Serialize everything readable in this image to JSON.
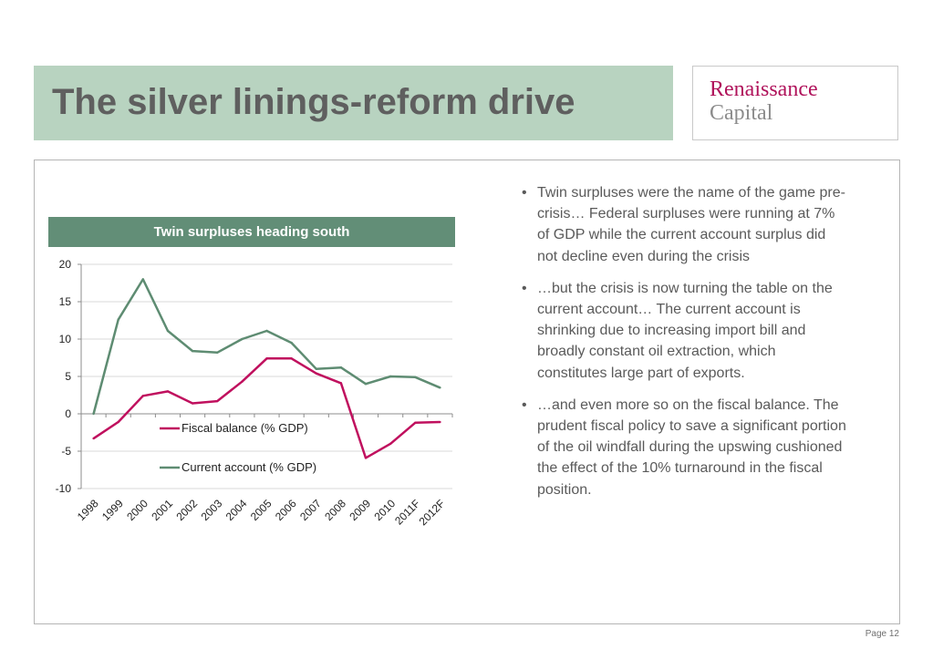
{
  "slide": {
    "title": "The silver linings-reform drive",
    "logo": {
      "line1": "Renaissance",
      "line2": "Capital"
    },
    "page": "Page 12"
  },
  "chart_header": "Twin surpluses heading south",
  "bullets": [
    "Twin surpluses were the name of the game pre-crisis… Federal surpluses were running at 7% of GDP while the current account surplus did not decline even during the crisis",
    "…but the crisis is now turning the table on the current account… The current account is shrinking due to increasing import bill and broadly constant oil extraction, which constitutes large part of exports.",
    "…and even more so on the fiscal balance.  The prudent fiscal policy to save a significant portion of the oil windfall during the upswing cushioned the effect of the 10% turnaround in the fiscal position."
  ],
  "chart_data": {
    "type": "line",
    "title": "Twin surpluses heading south",
    "categories": [
      "1998",
      "1999",
      "2000",
      "2001",
      "2002",
      "2003",
      "2004",
      "2005",
      "2006",
      "2007",
      "2008",
      "2009",
      "2010",
      "2011F",
      "2012F"
    ],
    "series": [
      {
        "name": "Fiscal balance (% GDP)",
        "color": "#c0105e",
        "values": [
          -3.3,
          -1.1,
          2.4,
          3.0,
          1.4,
          1.7,
          4.3,
          7.4,
          7.4,
          5.4,
          4.1,
          -5.9,
          -4.0,
          -1.2,
          -1.1
        ]
      },
      {
        "name": "Current account (% GDP)",
        "color": "#5e8c72",
        "values": [
          0.0,
          12.6,
          18.0,
          11.1,
          8.4,
          8.2,
          10.0,
          11.1,
          9.5,
          6.0,
          6.2,
          4.0,
          5.0,
          4.9,
          3.5
        ]
      }
    ],
    "ylim": [
      -10,
      20
    ],
    "yticks": [
      -10,
      -5,
      0,
      5,
      10,
      15,
      20
    ],
    "grid": true,
    "legend_position": "inside, lower-middle"
  }
}
